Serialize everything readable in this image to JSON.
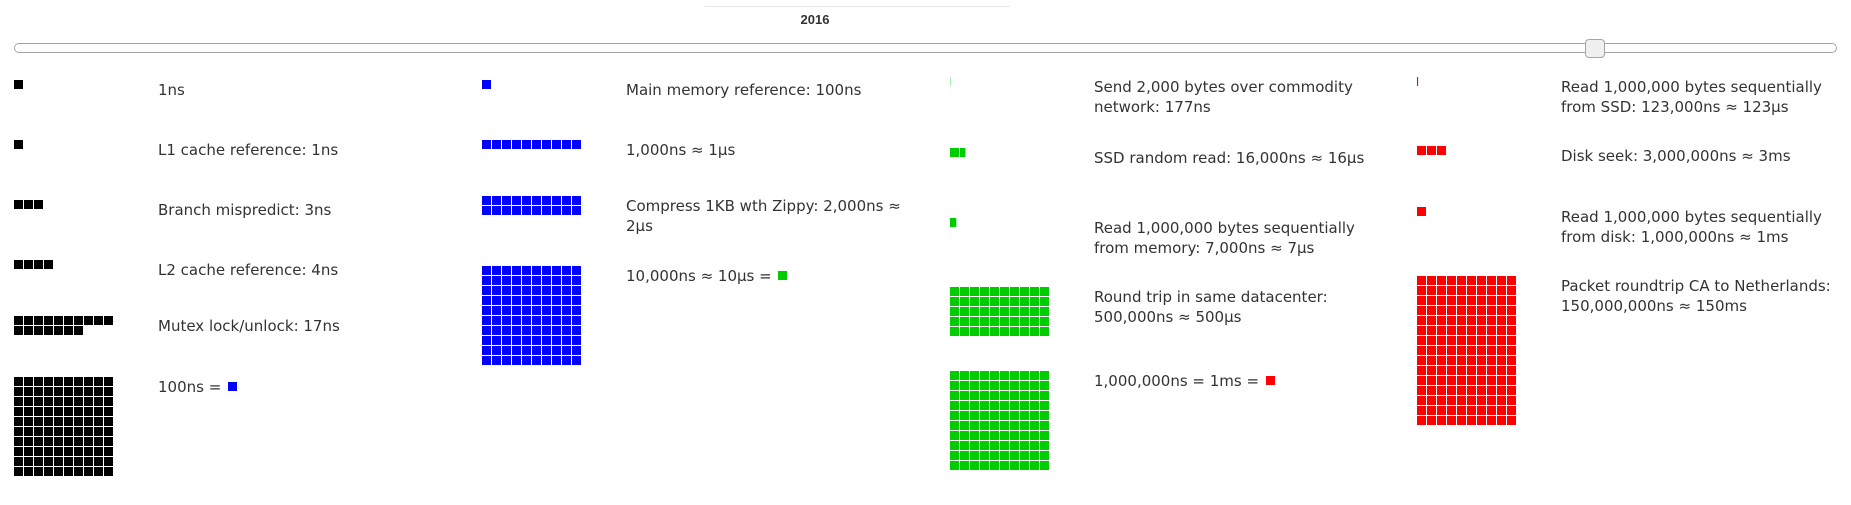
{
  "header": {
    "year": "2016"
  },
  "slider": {
    "value": 2016
  },
  "colors": {
    "ns": "#000000",
    "us": "#0000ff",
    "ms10": "#00cc00",
    "ms": "#ff0000"
  },
  "columns": [
    {
      "color": "#000000",
      "rows": [
        {
          "label": "1ns",
          "ns": 1
        },
        {
          "label": "L1 cache reference: 1ns",
          "ns": 1
        },
        {
          "label": "Branch mispredict: 3ns",
          "ns": 3
        },
        {
          "label": "L2 cache reference: 4ns",
          "ns": 4
        },
        {
          "label": "Mutex lock/unlock: 17ns",
          "ns": 17
        },
        {
          "label": "100ns = ",
          "ns": 100,
          "legend_color": "#0000ff"
        }
      ]
    },
    {
      "color": "#0000ff",
      "rows": [
        {
          "label": "Main memory reference: 100ns",
          "ns": 100
        },
        {
          "label": "1,000ns ≈ 1μs",
          "ns": 1000
        },
        {
          "label": "Compress 1KB wth Zippy: 2,000ns ≈ 2μs",
          "ns": 2000
        },
        {
          "label": "10,000ns ≈ 10μs = ",
          "ns": 10000,
          "legend_color": "#00cc00"
        }
      ]
    },
    {
      "color": "#00cc00",
      "rows": [
        {
          "label": "Send 2,000 bytes over commodity network: 177ns",
          "ns": 177
        },
        {
          "label": "SSD random read: 16,000ns ≈ 16μs",
          "ns": 16000
        },
        {
          "label": "Read 1,000,000 bytes sequentially from memory: 7,000ns ≈ 7μs",
          "ns": 7000
        },
        {
          "label": "Round trip in same datacenter: 500,000ns ≈ 500μs",
          "ns": 500000
        },
        {
          "label": "1,000,000ns = 1ms = ",
          "ns": 1000000,
          "legend_color": "#ff0000"
        }
      ]
    },
    {
      "color": "#ff0000",
      "rows": [
        {
          "label": "Read 1,000,000 bytes sequentially from SSD: 123,000ns ≈ 123μs",
          "ns": 123000
        },
        {
          "label": "Disk seek: 3,000,000ns ≈ 3ms",
          "ns": 3000000
        },
        {
          "label": "Read 1,000,000 bytes sequentially from disk: 1,000,000ns ≈ 1ms",
          "ns": 1000000
        },
        {
          "label": "Packet roundtrip CA to Netherlands: 150,000,000ns ≈ 150ms",
          "ns": 150000000
        }
      ]
    }
  ]
}
